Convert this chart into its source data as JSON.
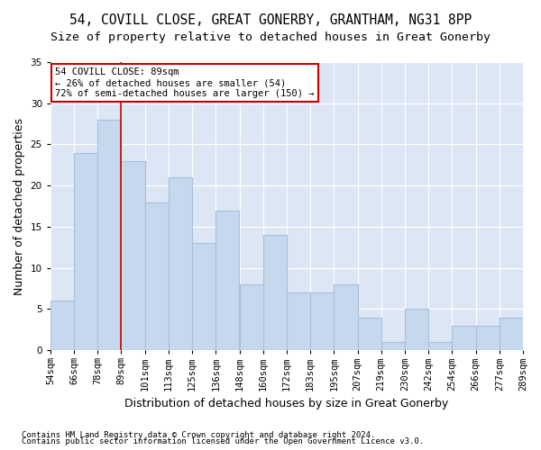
{
  "title": "54, COVILL CLOSE, GREAT GONERBY, GRANTHAM, NG31 8PP",
  "subtitle": "Size of property relative to detached houses in Great Gonerby",
  "xlabel": "Distribution of detached houses by size in Great Gonerby",
  "ylabel": "Number of detached properties",
  "footer_line1": "Contains HM Land Registry data © Crown copyright and database right 2024.",
  "footer_line2": "Contains public sector information licensed under the Open Government Licence v3.0.",
  "categories": [
    "54sqm",
    "66sqm",
    "78sqm",
    "89sqm",
    "101sqm",
    "113sqm",
    "125sqm",
    "136sqm",
    "148sqm",
    "160sqm",
    "172sqm",
    "183sqm",
    "195sqm",
    "207sqm",
    "219sqm",
    "230sqm",
    "242sqm",
    "254sqm",
    "266sqm",
    "277sqm",
    "289sqm"
  ],
  "values": [
    6,
    24,
    28,
    23,
    18,
    21,
    13,
    17,
    8,
    14,
    7,
    7,
    8,
    4,
    1,
    5,
    1,
    3,
    3,
    4
  ],
  "bar_color": "#c5d8ee",
  "bar_edge_color": "#a8c0dc",
  "annotation_title": "54 COVILL CLOSE: 89sqm",
  "annotation_line2": "← 26% of detached houses are smaller (54)",
  "annotation_line3": "72% of semi-detached houses are larger (150) →",
  "annotation_box_color": "#ffffff",
  "annotation_box_edge_color": "#cc0000",
  "red_line_color": "#cc0000",
  "ylim": [
    0,
    35
  ],
  "yticks": [
    0,
    5,
    10,
    15,
    20,
    25,
    30,
    35
  ],
  "fig_bg_color": "#ffffff",
  "plot_bg_color": "#dce6f5",
  "grid_color": "#ffffff",
  "title_fontsize": 10.5,
  "subtitle_fontsize": 9.5,
  "axis_label_fontsize": 9,
  "tick_fontsize": 7.5,
  "footer_fontsize": 6.5
}
